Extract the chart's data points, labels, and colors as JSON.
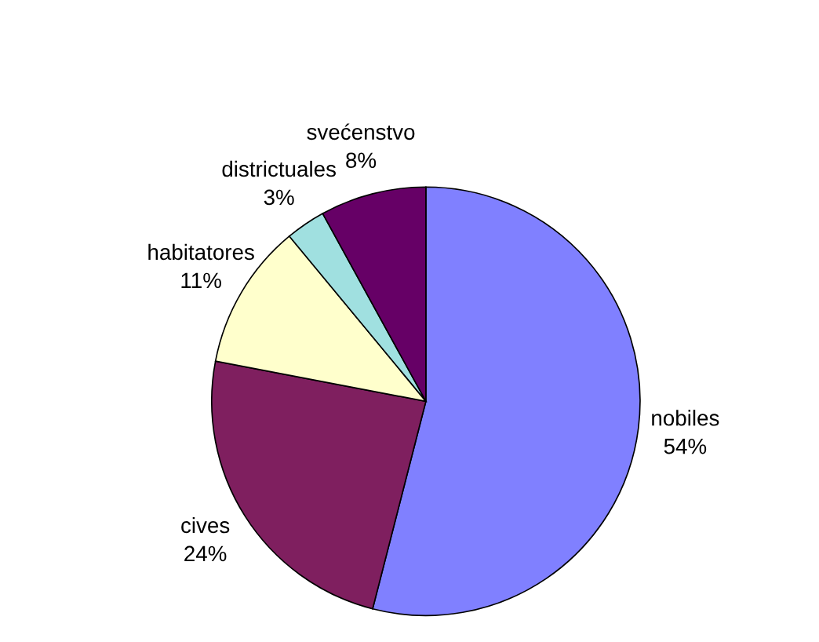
{
  "chart_data": {
    "type": "pie",
    "categories": [
      "nobiles",
      "cives",
      "habitatores",
      "districtuales",
      "svećenstvo"
    ],
    "values": [
      54,
      24,
      11,
      3,
      8
    ],
    "colors": [
      "#8080ff",
      "#7f1f5f",
      "#ffffcc",
      "#a0e0e0",
      "#660066"
    ],
    "value_labels": [
      "54%",
      "24%",
      "11%",
      "3%",
      "8%"
    ]
  }
}
